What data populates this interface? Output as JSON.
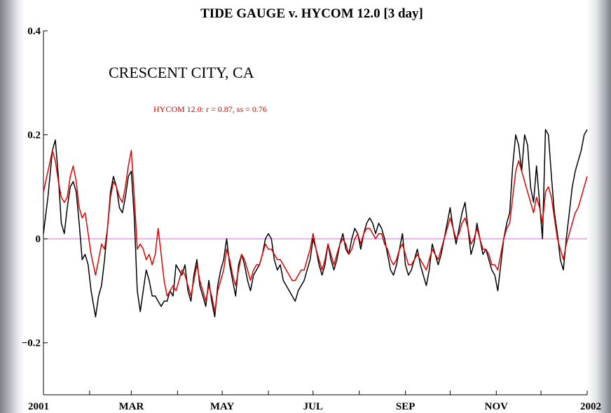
{
  "chart_data": {
    "type": "line",
    "title": "TIDE GAUGE v. HYCOM 12.0 [3 day]",
    "annotation": "CRESCENT CITY, CA",
    "legend_text": "HYCOM 12.0:  r = 0.87, ss = 0.76",
    "xlabel": "",
    "ylabel": "",
    "ylim": [
      -0.3,
      0.4
    ],
    "xlim": [
      0,
      365
    ],
    "y_ticks": [
      {
        "value": 0.4,
        "label": "0.4"
      },
      {
        "value": 0.2,
        "label": "0.2"
      },
      {
        "value": 0,
        "label": "0"
      },
      {
        "value": -0.2,
        "label": "−0.2"
      }
    ],
    "x_ticks": [
      {
        "value": 0,
        "label": "2001"
      },
      {
        "value": 59,
        "label": "MAR"
      },
      {
        "value": 120,
        "label": "MAY"
      },
      {
        "value": 181,
        "label": "JUL"
      },
      {
        "value": 243,
        "label": "SEP"
      },
      {
        "value": 304,
        "label": "NOV"
      },
      {
        "value": 365,
        "label": "2002"
      }
    ],
    "x_minor_ticks": [
      31,
      90,
      151,
      212,
      273,
      334
    ],
    "zero_line_color": "#e060e0",
    "series": [
      {
        "color": "#000000",
        "x": [
          0,
          3,
          6,
          8,
          10,
          12,
          14,
          16,
          18,
          20,
          22,
          24,
          26,
          28,
          30,
          32,
          35,
          37,
          39,
          41,
          43,
          45,
          47,
          49,
          51,
          53,
          55,
          57,
          59,
          61,
          63,
          65,
          67,
          69,
          71,
          73,
          75,
          77,
          79,
          81,
          83,
          85,
          87,
          89,
          91,
          93,
          95,
          97,
          99,
          101,
          103,
          105,
          107,
          109,
          111,
          113,
          115,
          117,
          119,
          121,
          123,
          125,
          127,
          129,
          131,
          133,
          135,
          137,
          139,
          141,
          143,
          145,
          147,
          149,
          151,
          153,
          155,
          157,
          159,
          161,
          163,
          165,
          167,
          169,
          171,
          173,
          175,
          177,
          179,
          181,
          183,
          185,
          187,
          189,
          191,
          193,
          195,
          197,
          199,
          201,
          203,
          205,
          207,
          209,
          211,
          213,
          215,
          217,
          219,
          221,
          223,
          225,
          227,
          229,
          231,
          233,
          235,
          237,
          239,
          241,
          243,
          245,
          247,
          249,
          251,
          253,
          255,
          257,
          259,
          261,
          263,
          265,
          267,
          269,
          271,
          273,
          275,
          277,
          279,
          281,
          283,
          285,
          287,
          289,
          291,
          293,
          295,
          297,
          299,
          301,
          303,
          305,
          307,
          309,
          311,
          313,
          315,
          317,
          319,
          321,
          323,
          325,
          327,
          329,
          331,
          333,
          335,
          337,
          339,
          341,
          343,
          345,
          347,
          349,
          351,
          353,
          355,
          357,
          359,
          361,
          363,
          365
        ],
        "y": [
          0.01,
          0.08,
          0.17,
          0.19,
          0.12,
          0.03,
          0.01,
          0.06,
          0.1,
          0.11,
          0.09,
          0.03,
          -0.04,
          -0.03,
          -0.05,
          -0.1,
          -0.15,
          -0.11,
          -0.09,
          -0.04,
          0.02,
          0.09,
          0.12,
          0.1,
          0.06,
          0.05,
          0.08,
          0.12,
          0.13,
          0.04,
          -0.1,
          -0.14,
          -0.1,
          -0.06,
          -0.08,
          -0.11,
          -0.11,
          -0.12,
          -0.13,
          -0.12,
          -0.12,
          -0.1,
          -0.11,
          -0.05,
          -0.06,
          -0.07,
          -0.05,
          -0.1,
          -0.12,
          -0.07,
          -0.04,
          -0.09,
          -0.11,
          -0.13,
          -0.08,
          -0.12,
          -0.15,
          -0.09,
          -0.06,
          -0.04,
          -0.0,
          -0.05,
          -0.08,
          -0.11,
          -0.05,
          -0.03,
          -0.05,
          -0.08,
          -0.1,
          -0.07,
          -0.06,
          -0.05,
          -0.03,
          0.0,
          0.01,
          0.0,
          -0.04,
          -0.06,
          -0.05,
          -0.08,
          -0.09,
          -0.1,
          -0.11,
          -0.12,
          -0.1,
          -0.09,
          -0.08,
          -0.06,
          -0.04,
          0.0,
          -0.02,
          -0.05,
          -0.07,
          -0.05,
          -0.01,
          -0.04,
          -0.06,
          -0.04,
          -0.01,
          0.01,
          -0.02,
          -0.03,
          0.0,
          0.02,
          0.01,
          -0.02,
          0.01,
          0.03,
          0.04,
          0.03,
          0.01,
          0.03,
          0.02,
          0.0,
          -0.03,
          -0.06,
          -0.07,
          -0.05,
          -0.02,
          0.01,
          -0.05,
          -0.07,
          -0.06,
          -0.04,
          -0.02,
          -0.05,
          -0.07,
          -0.09,
          -0.06,
          -0.01,
          -0.03,
          -0.05,
          -0.03,
          0.0,
          0.03,
          0.06,
          0.02,
          -0.01,
          0.02,
          0.05,
          0.07,
          0.02,
          -0.03,
          -0.01,
          0.03,
          0.0,
          -0.03,
          -0.02,
          -0.04,
          -0.06,
          -0.07,
          -0.1,
          -0.05,
          0.0,
          0.03,
          0.05,
          0.14,
          0.2,
          0.18,
          0.13,
          0.2,
          0.18,
          0.1,
          0.07,
          0.14,
          0.07,
          0.0,
          0.21,
          0.2,
          0.12,
          0.05,
          0.01,
          -0.04,
          -0.06,
          -0.0,
          0.05,
          0.1,
          0.13,
          0.15,
          0.17,
          0.2,
          0.21
        ]
      },
      {
        "color": "#e00000",
        "x": [
          0,
          3,
          6,
          8,
          10,
          12,
          14,
          16,
          18,
          20,
          22,
          24,
          26,
          28,
          30,
          32,
          35,
          37,
          39,
          41,
          43,
          45,
          47,
          49,
          51,
          53,
          55,
          57,
          59,
          61,
          63,
          65,
          67,
          69,
          71,
          73,
          75,
          77,
          79,
          81,
          83,
          85,
          87,
          89,
          91,
          93,
          95,
          97,
          99,
          101,
          103,
          105,
          107,
          109,
          111,
          113,
          115,
          117,
          119,
          121,
          123,
          125,
          127,
          129,
          131,
          133,
          135,
          137,
          139,
          141,
          143,
          145,
          147,
          149,
          151,
          153,
          155,
          157,
          159,
          161,
          163,
          165,
          167,
          169,
          171,
          173,
          175,
          177,
          179,
          181,
          183,
          185,
          187,
          189,
          191,
          193,
          195,
          197,
          199,
          201,
          203,
          205,
          207,
          209,
          211,
          213,
          215,
          217,
          219,
          221,
          223,
          225,
          227,
          229,
          231,
          233,
          235,
          237,
          239,
          241,
          243,
          245,
          247,
          249,
          251,
          253,
          255,
          257,
          259,
          261,
          263,
          265,
          267,
          269,
          271,
          273,
          275,
          277,
          279,
          281,
          283,
          285,
          287,
          289,
          291,
          293,
          295,
          297,
          299,
          301,
          303,
          305,
          307,
          309,
          311,
          313,
          315,
          317,
          319,
          321,
          323,
          325,
          327,
          329,
          331,
          333,
          335,
          337,
          339,
          341,
          343,
          345,
          347,
          349,
          351,
          353,
          355,
          357,
          359,
          361,
          363,
          365
        ],
        "y": [
          0.09,
          0.13,
          0.17,
          0.15,
          0.11,
          0.08,
          0.07,
          0.08,
          0.12,
          0.14,
          0.11,
          0.06,
          0.04,
          0.05,
          0.01,
          -0.03,
          -0.07,
          -0.04,
          -0.01,
          -0.02,
          0.02,
          0.08,
          0.11,
          0.1,
          0.08,
          0.07,
          0.1,
          0.14,
          0.17,
          0.08,
          -0.02,
          -0.01,
          -0.02,
          -0.04,
          -0.03,
          -0.05,
          -0.03,
          0.02,
          -0.03,
          -0.08,
          -0.11,
          -0.1,
          -0.09,
          -0.1,
          -0.08,
          -0.06,
          -0.07,
          -0.09,
          -0.11,
          -0.08,
          -0.05,
          -0.08,
          -0.1,
          -0.12,
          -0.09,
          -0.11,
          -0.14,
          -0.1,
          -0.08,
          -0.06,
          -0.02,
          -0.04,
          -0.07,
          -0.09,
          -0.06,
          -0.03,
          -0.04,
          -0.06,
          -0.08,
          -0.06,
          -0.05,
          -0.05,
          -0.03,
          -0.01,
          -0.02,
          -0.02,
          -0.03,
          -0.04,
          -0.04,
          -0.05,
          -0.06,
          -0.07,
          -0.08,
          -0.08,
          -0.07,
          -0.06,
          -0.06,
          -0.04,
          -0.02,
          0.01,
          -0.02,
          -0.04,
          -0.06,
          -0.04,
          -0.01,
          -0.03,
          -0.05,
          -0.03,
          -0.01,
          0.0,
          -0.01,
          -0.03,
          -0.02,
          0.0,
          0.01,
          -0.01,
          0.01,
          0.02,
          0.02,
          0.01,
          0.0,
          0.01,
          0.01,
          -0.01,
          -0.02,
          -0.04,
          -0.05,
          -0.04,
          -0.02,
          -0.01,
          -0.03,
          -0.05,
          -0.05,
          -0.04,
          -0.03,
          -0.04,
          -0.05,
          -0.06,
          -0.04,
          -0.02,
          -0.03,
          -0.04,
          -0.02,
          0.0,
          0.02,
          0.04,
          0.02,
          0.0,
          0.01,
          0.03,
          0.04,
          0.02,
          -0.01,
          0.0,
          0.02,
          0.0,
          -0.02,
          -0.02,
          -0.03,
          -0.05,
          -0.05,
          -0.06,
          -0.03,
          0.0,
          0.02,
          0.03,
          0.08,
          0.13,
          0.15,
          0.13,
          0.11,
          0.09,
          0.07,
          0.05,
          0.08,
          0.06,
          0.03,
          0.09,
          0.1,
          0.08,
          0.04,
          0.0,
          -0.02,
          -0.04,
          -0.01,
          0.01,
          0.03,
          0.05,
          0.06,
          0.08,
          0.1,
          0.12
        ]
      }
    ]
  }
}
